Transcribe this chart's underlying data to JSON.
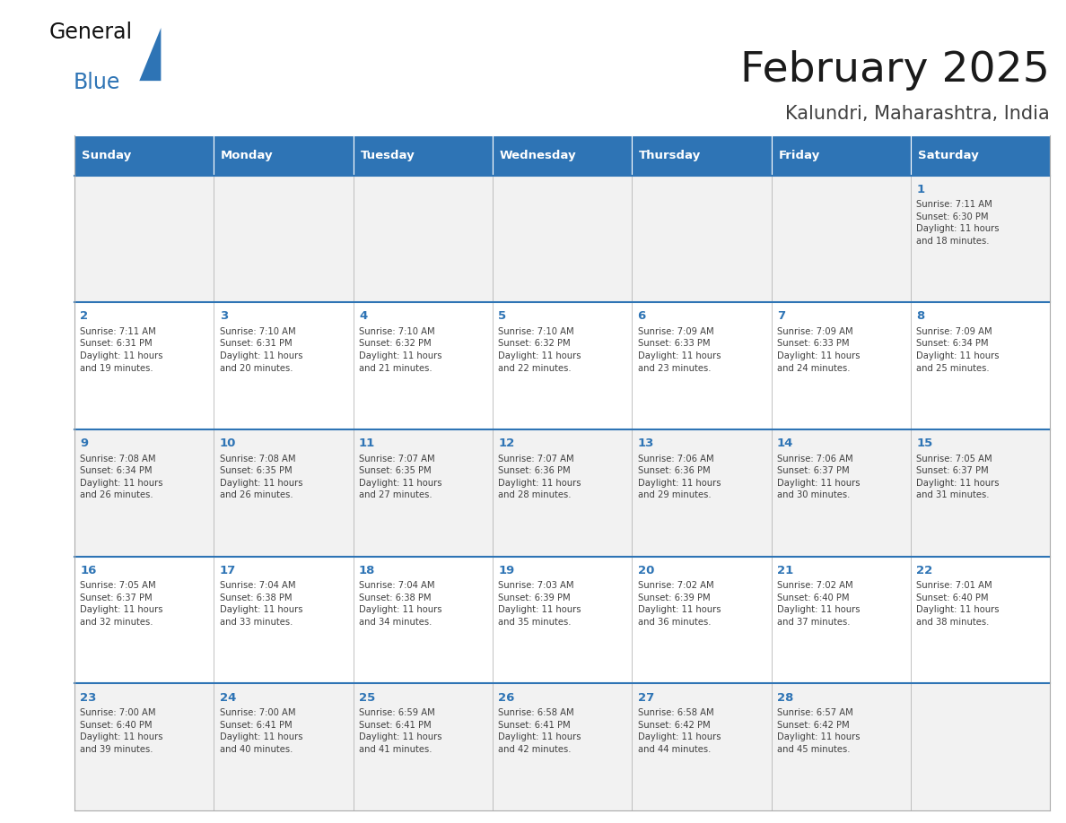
{
  "title": "February 2025",
  "subtitle": "Kalundri, Maharashtra, India",
  "header_color": "#2E74B5",
  "header_text_color": "#FFFFFF",
  "row_bg_odd": "#F2F2F2",
  "row_bg_even": "#FFFFFF",
  "day_number_color": "#2E74B5",
  "text_color": "#404040",
  "border_color": "#AAAAAA",
  "week_sep_color": "#2E74B5",
  "days_of_week": [
    "Sunday",
    "Monday",
    "Tuesday",
    "Wednesday",
    "Thursday",
    "Friday",
    "Saturday"
  ],
  "weeks": [
    [
      {
        "day": 0,
        "text": ""
      },
      {
        "day": 0,
        "text": ""
      },
      {
        "day": 0,
        "text": ""
      },
      {
        "day": 0,
        "text": ""
      },
      {
        "day": 0,
        "text": ""
      },
      {
        "day": 0,
        "text": ""
      },
      {
        "day": 1,
        "text": "Sunrise: 7:11 AM\nSunset: 6:30 PM\nDaylight: 11 hours\nand 18 minutes."
      }
    ],
    [
      {
        "day": 2,
        "text": "Sunrise: 7:11 AM\nSunset: 6:31 PM\nDaylight: 11 hours\nand 19 minutes."
      },
      {
        "day": 3,
        "text": "Sunrise: 7:10 AM\nSunset: 6:31 PM\nDaylight: 11 hours\nand 20 minutes."
      },
      {
        "day": 4,
        "text": "Sunrise: 7:10 AM\nSunset: 6:32 PM\nDaylight: 11 hours\nand 21 minutes."
      },
      {
        "day": 5,
        "text": "Sunrise: 7:10 AM\nSunset: 6:32 PM\nDaylight: 11 hours\nand 22 minutes."
      },
      {
        "day": 6,
        "text": "Sunrise: 7:09 AM\nSunset: 6:33 PM\nDaylight: 11 hours\nand 23 minutes."
      },
      {
        "day": 7,
        "text": "Sunrise: 7:09 AM\nSunset: 6:33 PM\nDaylight: 11 hours\nand 24 minutes."
      },
      {
        "day": 8,
        "text": "Sunrise: 7:09 AM\nSunset: 6:34 PM\nDaylight: 11 hours\nand 25 minutes."
      }
    ],
    [
      {
        "day": 9,
        "text": "Sunrise: 7:08 AM\nSunset: 6:34 PM\nDaylight: 11 hours\nand 26 minutes."
      },
      {
        "day": 10,
        "text": "Sunrise: 7:08 AM\nSunset: 6:35 PM\nDaylight: 11 hours\nand 26 minutes."
      },
      {
        "day": 11,
        "text": "Sunrise: 7:07 AM\nSunset: 6:35 PM\nDaylight: 11 hours\nand 27 minutes."
      },
      {
        "day": 12,
        "text": "Sunrise: 7:07 AM\nSunset: 6:36 PM\nDaylight: 11 hours\nand 28 minutes."
      },
      {
        "day": 13,
        "text": "Sunrise: 7:06 AM\nSunset: 6:36 PM\nDaylight: 11 hours\nand 29 minutes."
      },
      {
        "day": 14,
        "text": "Sunrise: 7:06 AM\nSunset: 6:37 PM\nDaylight: 11 hours\nand 30 minutes."
      },
      {
        "day": 15,
        "text": "Sunrise: 7:05 AM\nSunset: 6:37 PM\nDaylight: 11 hours\nand 31 minutes."
      }
    ],
    [
      {
        "day": 16,
        "text": "Sunrise: 7:05 AM\nSunset: 6:37 PM\nDaylight: 11 hours\nand 32 minutes."
      },
      {
        "day": 17,
        "text": "Sunrise: 7:04 AM\nSunset: 6:38 PM\nDaylight: 11 hours\nand 33 minutes."
      },
      {
        "day": 18,
        "text": "Sunrise: 7:04 AM\nSunset: 6:38 PM\nDaylight: 11 hours\nand 34 minutes."
      },
      {
        "day": 19,
        "text": "Sunrise: 7:03 AM\nSunset: 6:39 PM\nDaylight: 11 hours\nand 35 minutes."
      },
      {
        "day": 20,
        "text": "Sunrise: 7:02 AM\nSunset: 6:39 PM\nDaylight: 11 hours\nand 36 minutes."
      },
      {
        "day": 21,
        "text": "Sunrise: 7:02 AM\nSunset: 6:40 PM\nDaylight: 11 hours\nand 37 minutes."
      },
      {
        "day": 22,
        "text": "Sunrise: 7:01 AM\nSunset: 6:40 PM\nDaylight: 11 hours\nand 38 minutes."
      }
    ],
    [
      {
        "day": 23,
        "text": "Sunrise: 7:00 AM\nSunset: 6:40 PM\nDaylight: 11 hours\nand 39 minutes."
      },
      {
        "day": 24,
        "text": "Sunrise: 7:00 AM\nSunset: 6:41 PM\nDaylight: 11 hours\nand 40 minutes."
      },
      {
        "day": 25,
        "text": "Sunrise: 6:59 AM\nSunset: 6:41 PM\nDaylight: 11 hours\nand 41 minutes."
      },
      {
        "day": 26,
        "text": "Sunrise: 6:58 AM\nSunset: 6:41 PM\nDaylight: 11 hours\nand 42 minutes."
      },
      {
        "day": 27,
        "text": "Sunrise: 6:58 AM\nSunset: 6:42 PM\nDaylight: 11 hours\nand 44 minutes."
      },
      {
        "day": 28,
        "text": "Sunrise: 6:57 AM\nSunset: 6:42 PM\nDaylight: 11 hours\nand 45 minutes."
      },
      {
        "day": 0,
        "text": ""
      }
    ]
  ]
}
